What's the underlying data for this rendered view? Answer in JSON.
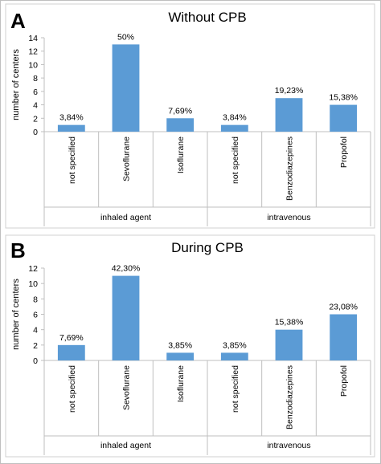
{
  "chart_data": [
    {
      "panel": "A",
      "type": "bar",
      "title": "Without CPB",
      "ylabel": "number of centers",
      "xlabel": "",
      "ylim": [
        0,
        14
      ],
      "yticks": [
        0,
        2,
        4,
        6,
        8,
        10,
        12,
        14
      ],
      "categories": [
        "not specified",
        "Sevoflurane",
        "Isoflurane",
        "not specified",
        "Benzodiazepines",
        "Propofol"
      ],
      "values": [
        1,
        13,
        2,
        1,
        5,
        4
      ],
      "data_labels": [
        "3,84%",
        "50%",
        "7,69%",
        "3,84%",
        "19,23%",
        "15,38%"
      ],
      "groups": [
        {
          "label": "inhaled agent",
          "categories": [
            0,
            1,
            2
          ]
        },
        {
          "label": "intravenous",
          "categories": [
            3,
            4,
            5
          ]
        }
      ],
      "bar_color": "#5b9bd5",
      "grid": false
    },
    {
      "panel": "B",
      "type": "bar",
      "title": "During CPB",
      "ylabel": "number of centers",
      "xlabel": "",
      "ylim": [
        0,
        12
      ],
      "yticks": [
        0,
        2,
        4,
        6,
        8,
        10,
        12
      ],
      "categories": [
        "not specified",
        "Sevoflurane",
        "Isoflurane",
        "not specified",
        "Benzodiazepines",
        "Propofol"
      ],
      "values": [
        2,
        11,
        1,
        1,
        4,
        6
      ],
      "data_labels": [
        "7,69%",
        "42,30%",
        "3,85%",
        "3,85%",
        "15,38%",
        "23,08%"
      ],
      "groups": [
        {
          "label": "inhaled agent",
          "categories": [
            0,
            1,
            2
          ]
        },
        {
          "label": "intravenous",
          "categories": [
            3,
            4,
            5
          ]
        }
      ],
      "bar_color": "#5b9bd5",
      "grid": false
    }
  ]
}
